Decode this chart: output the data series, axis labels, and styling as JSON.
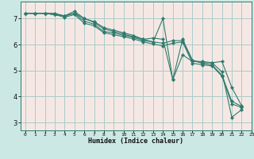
{
  "xlabel": "Humidex (Indice chaleur)",
  "bg_color": "#cce8e4",
  "plot_bg_color": "#f5e8e4",
  "grid_color": "#aaccc8",
  "line_color": "#2e7b6e",
  "xlim": [
    -0.5,
    23
  ],
  "ylim": [
    2.7,
    7.65
  ],
  "xticks": [
    0,
    1,
    2,
    3,
    4,
    5,
    6,
    7,
    8,
    9,
    10,
    11,
    12,
    13,
    14,
    15,
    16,
    17,
    18,
    19,
    20,
    21,
    22,
    23
  ],
  "yticks": [
    3,
    4,
    5,
    6,
    7
  ],
  "lines": [
    {
      "x": [
        0,
        1,
        2,
        3,
        4,
        5,
        6,
        7,
        8,
        9,
        10,
        11,
        12,
        13,
        14,
        15,
        16,
        17,
        18,
        19,
        20,
        21,
        22
      ],
      "y": [
        7.2,
        7.2,
        7.2,
        7.15,
        7.1,
        7.28,
        7.0,
        6.88,
        6.65,
        6.55,
        6.45,
        6.35,
        6.2,
        6.25,
        6.2,
        4.65,
        6.2,
        5.4,
        5.3,
        5.3,
        4.95,
        3.2,
        3.5
      ]
    },
    {
      "x": [
        0,
        1,
        2,
        3,
        4,
        5,
        6,
        7,
        8,
        9,
        10,
        11,
        12,
        13,
        14,
        15,
        16,
        17,
        18,
        19,
        20,
        21,
        22
      ],
      "y": [
        7.2,
        7.2,
        7.2,
        7.15,
        7.1,
        7.2,
        6.9,
        6.78,
        6.5,
        6.45,
        6.35,
        6.28,
        6.15,
        6.1,
        6.05,
        6.15,
        6.15,
        5.38,
        5.28,
        5.22,
        4.82,
        3.82,
        3.62
      ]
    },
    {
      "x": [
        0,
        1,
        2,
        3,
        4,
        5,
        6,
        7,
        8,
        9,
        10,
        11,
        12,
        13,
        14,
        15,
        16,
        17,
        18,
        19,
        20,
        21,
        22
      ],
      "y": [
        7.2,
        7.2,
        7.2,
        7.2,
        7.1,
        7.2,
        7.0,
        6.85,
        6.6,
        6.5,
        6.4,
        6.3,
        6.2,
        6.1,
        7.0,
        4.65,
        5.6,
        5.35,
        5.35,
        5.3,
        5.35,
        4.35,
        3.65
      ]
    },
    {
      "x": [
        0,
        1,
        2,
        3,
        4,
        5,
        6,
        7,
        8,
        9,
        10,
        11,
        12,
        13,
        14,
        15,
        16,
        17,
        18,
        19,
        20,
        21,
        22
      ],
      "y": [
        7.2,
        7.2,
        7.2,
        7.15,
        7.05,
        7.15,
        6.82,
        6.72,
        6.45,
        6.38,
        6.3,
        6.22,
        6.1,
        6.02,
        5.95,
        6.05,
        6.1,
        5.28,
        5.22,
        5.18,
        4.78,
        3.72,
        3.58
      ]
    }
  ]
}
